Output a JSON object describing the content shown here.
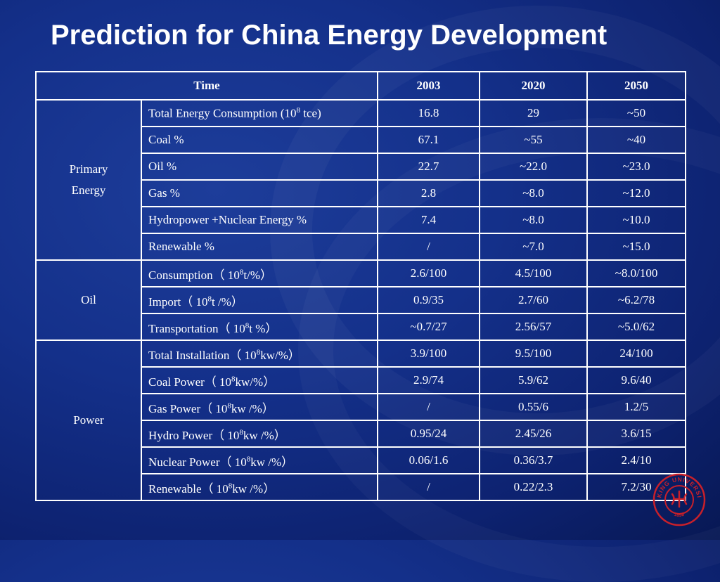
{
  "slide": {
    "title": "Prediction for China Energy Development"
  },
  "table": {
    "header": {
      "time": "Time",
      "years": [
        "2003",
        "2020",
        "2050"
      ]
    },
    "groups": [
      {
        "name": "Primary Energy",
        "name_lines": [
          "Primary",
          "Energy"
        ]
      },
      {
        "name": "Oil",
        "name_lines": [
          "Oil"
        ]
      },
      {
        "name": "Power",
        "name_lines": [
          "Power"
        ]
      }
    ],
    "rows": [
      {
        "label": "Total Energy Consumption (10",
        "sup": "8",
        "label_tail": " tce)",
        "values": [
          "16.8",
          "29",
          "~50"
        ]
      },
      {
        "label": "Coal %",
        "sup": "",
        "label_tail": "",
        "values": [
          "67.1",
          "~55",
          "~40"
        ]
      },
      {
        "label": "Oil %",
        "sup": "",
        "label_tail": "",
        "values": [
          "22.7",
          "~22.0",
          "~23.0"
        ]
      },
      {
        "label": "Gas %",
        "sup": "",
        "label_tail": "",
        "values": [
          "2.8",
          "~8.0",
          "~12.0"
        ]
      },
      {
        "label": "Hydropower +Nuclear Energy %",
        "sup": "",
        "label_tail": "",
        "values": [
          "7.4",
          "~8.0",
          "~10.0"
        ]
      },
      {
        "label": "Renewable %",
        "sup": "",
        "label_tail": "",
        "values": [
          "/",
          "~7.0",
          "~15.0"
        ]
      },
      {
        "label": "Consumption（ 10",
        "sup": "8",
        "label_tail": "t/%）",
        "values": [
          "2.6/100",
          "4.5/100",
          "~8.0/100"
        ]
      },
      {
        "label": "Import（ 10",
        "sup": "8",
        "label_tail": "t /%）",
        "values": [
          "0.9/35",
          "2.7/60",
          "~6.2/78"
        ]
      },
      {
        "label": "Transportation（ 10",
        "sup": "8",
        "label_tail": "t %）",
        "values": [
          "~0.7/27",
          "2.56/57",
          "~5.0/62"
        ]
      },
      {
        "label": "Total Installation（ 10",
        "sup": "8",
        "label_tail": "kw/%）",
        "values": [
          "3.9/100",
          "9.5/100",
          "24/100"
        ]
      },
      {
        "label": "Coal Power（ 10",
        "sup": "8",
        "label_tail": "kw/%）",
        "values": [
          "2.9/74",
          "5.9/62",
          "9.6/40"
        ]
      },
      {
        "label": "Gas Power（ 10",
        "sup": "8",
        "label_tail": "kw /%）",
        "values": [
          "/",
          "0.55/6",
          "1.2/5"
        ]
      },
      {
        "label": "Hydro Power（ 10",
        "sup": "8",
        "label_tail": "kw /%）",
        "values": [
          "0.95/24",
          "2.45/26",
          "3.6/15"
        ]
      },
      {
        "label": "Nuclear Power（ 10",
        "sup": "8",
        "label_tail": "kw /%）",
        "values": [
          "0.06/1.6",
          "0.36/3.7",
          "2.4/10"
        ]
      },
      {
        "label": "Renewable（ 10",
        "sup": "8",
        "label_tail": "kw /%）",
        "values": [
          "/",
          "0.22/2.3",
          "7.2/30"
        ]
      }
    ]
  },
  "logo": {
    "text_top": "PEKING UNIVERSITY",
    "year": "1898",
    "color": "#c8202a"
  }
}
